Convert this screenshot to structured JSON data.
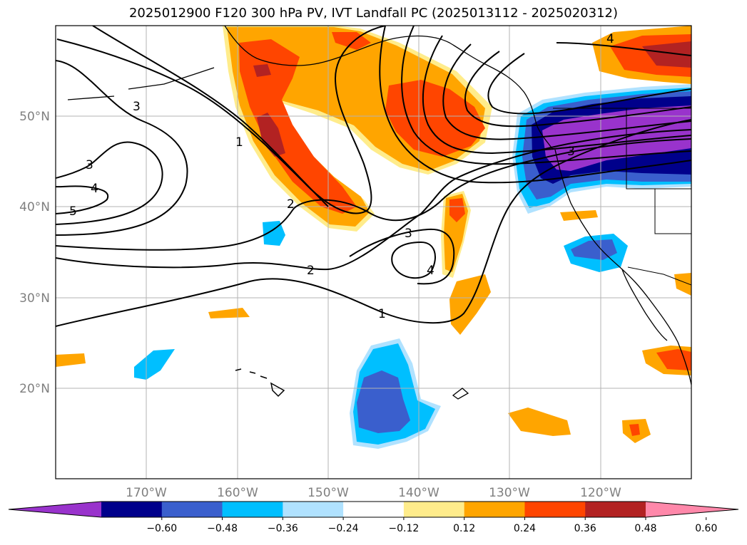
{
  "title": "2025012900 F120 300 hPa PV, IVT Landfall PC (2025013112 - 2025020312)",
  "map": {
    "lon_ticks": [
      {
        "lon": -170,
        "label": "170°W"
      },
      {
        "lon": -160,
        "label": "160°W"
      },
      {
        "lon": -150,
        "label": "150°W"
      },
      {
        "lon": -140,
        "label": "140°W"
      },
      {
        "lon": -130,
        "label": "130°W"
      },
      {
        "lon": -120,
        "label": "120°W"
      }
    ],
    "lat_ticks": [
      {
        "lat": 50,
        "label": "50°N"
      },
      {
        "lat": 40,
        "label": "40°N"
      },
      {
        "lat": 30,
        "label": "30°N"
      },
      {
        "lat": 20,
        "label": "20°N"
      }
    ],
    "contour_labels": [
      "1",
      "2",
      "3",
      "4",
      "5"
    ],
    "gridlines": true
  },
  "colorbar": {
    "ticks": [
      "−0.60",
      "−0.48",
      "−0.36",
      "−0.24",
      "−0.12",
      "0.12",
      "0.24",
      "0.36",
      "0.48",
      "0.60"
    ],
    "colors": [
      "#9933cc",
      "#00008b",
      "#3a5fcd",
      "#00bfff",
      "#b0e2ff",
      "#ffffff",
      "#ffec8b",
      "#ffa500",
      "#ff4500",
      "#b22222",
      "#ff88aa"
    ]
  }
}
